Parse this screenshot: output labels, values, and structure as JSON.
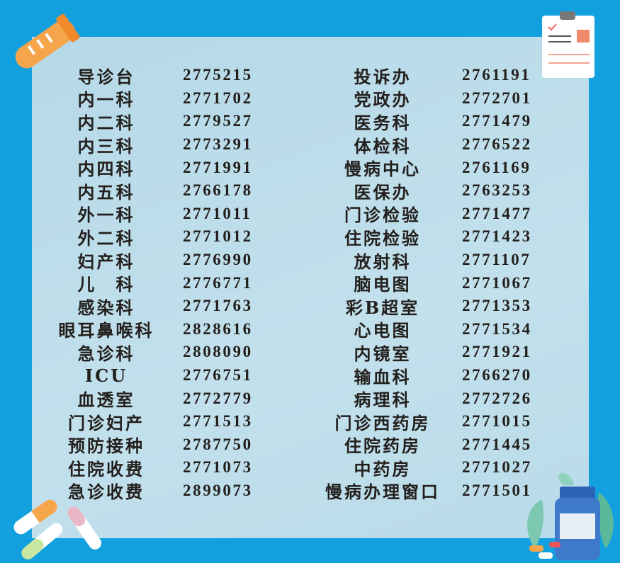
{
  "directory": {
    "left": [
      {
        "name": "导诊台",
        "phone": "2775215"
      },
      {
        "name": "内一科",
        "phone": "2771702"
      },
      {
        "name": "内二科",
        "phone": "2779527"
      },
      {
        "name": "内三科",
        "phone": "2773291"
      },
      {
        "name": "内四科",
        "phone": "2771991"
      },
      {
        "name": "内五科",
        "phone": "2766178"
      },
      {
        "name": "外一科",
        "phone": "2771011"
      },
      {
        "name": "外二科",
        "phone": "2771012"
      },
      {
        "name": "妇产科",
        "phone": "2776990"
      },
      {
        "name": "儿　科",
        "phone": "2776771"
      },
      {
        "name": "感染科",
        "phone": "2771763"
      },
      {
        "name": "眼耳鼻喉科",
        "phone": "2828616"
      },
      {
        "name": "急诊科",
        "phone": "2808090"
      },
      {
        "name": "ICU",
        "phone": "2776751"
      },
      {
        "name": "血透室",
        "phone": "2772779"
      },
      {
        "name": "门诊妇产",
        "phone": "2771513"
      },
      {
        "name": "预防接种",
        "phone": "2787750"
      },
      {
        "name": "住院收费",
        "phone": "2771073"
      },
      {
        "name": "急诊收费",
        "phone": "2899073"
      }
    ],
    "right": [
      {
        "name": "投诉办",
        "phone": "2761191"
      },
      {
        "name": "党政办",
        "phone": "2772701"
      },
      {
        "name": "医务科",
        "phone": "2771479"
      },
      {
        "name": "体检科",
        "phone": "2776522"
      },
      {
        "name": "慢病中心",
        "phone": "2761169"
      },
      {
        "name": "医保办",
        "phone": "2763253"
      },
      {
        "name": "门诊检验",
        "phone": "2771477"
      },
      {
        "name": "住院检验",
        "phone": "2771423"
      },
      {
        "name": "放射科",
        "phone": "2771107"
      },
      {
        "name": "脑电图",
        "phone": "2771067"
      },
      {
        "name": "彩B超室",
        "phone": "2771353"
      },
      {
        "name": "心电图",
        "phone": "2771534"
      },
      {
        "name": "内镜室",
        "phone": "2771921"
      },
      {
        "name": "输血科",
        "phone": "2766270"
      },
      {
        "name": "病理科",
        "phone": "2772726"
      },
      {
        "name": "门诊西药房",
        "phone": "2771015"
      },
      {
        "name": "住院药房",
        "phone": "2771445"
      },
      {
        "name": "中药房",
        "phone": "2771027"
      },
      {
        "name": "慢病办理窗口",
        "phone": "2771501"
      }
    ]
  },
  "colors": {
    "background": "#13a0df",
    "panel": "#bcdce9",
    "text": "#231f1c",
    "accent_orange": "#f5a54a"
  },
  "icons": [
    "test-tube-icon",
    "clipboard-icon",
    "pills-icon",
    "medicine-bottle-icon"
  ]
}
